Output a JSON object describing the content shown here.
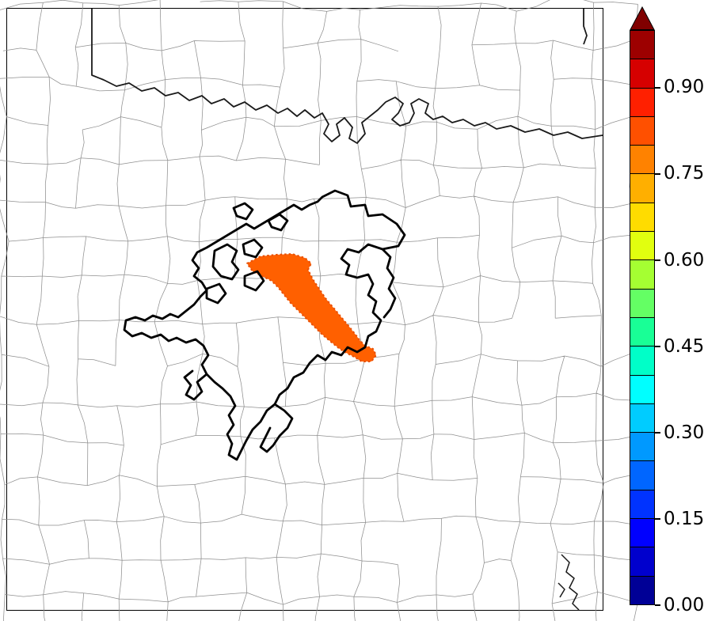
{
  "figure": {
    "description": "County-outline map with a thick black composite contour and an orange filled probability region, with a vertical jet-style colorbar",
    "background_color": "#ffffff"
  },
  "map": {
    "county_line_color": "#8f8f8f",
    "state_border_color": "#1a1a1a",
    "contour_color": "#000000",
    "river_color": "#1a1a1a",
    "probability_region_color": "#ff6000",
    "probability_region_edge_color": "#e84e00"
  },
  "colorbar": {
    "orientation": "vertical",
    "min": 0.0,
    "max": 1.0,
    "interval": 0.05,
    "extend": "max",
    "arrow_color": "#800000",
    "outline_color": "#000000",
    "ticks": [
      "0.00",
      "0.15",
      "0.30",
      "0.45",
      "0.60",
      "0.75",
      "0.90"
    ],
    "tick_values": [
      0.0,
      0.15,
      0.3,
      0.45,
      0.6,
      0.75,
      0.9
    ],
    "segment_colors": [
      "#000096",
      "#0000cd",
      "#0000ff",
      "#0033ff",
      "#0066ff",
      "#0099ff",
      "#00ccff",
      "#00ffff",
      "#00ffc8",
      "#19ff96",
      "#64ff64",
      "#a5ff32",
      "#e1ff0f",
      "#ffdc00",
      "#ffaf00",
      "#ff8200",
      "#ff5000",
      "#ff2000",
      "#d60000",
      "#9d0000"
    ]
  },
  "chart_data": {
    "type": "heatmap",
    "title": "",
    "xlabel": "",
    "ylabel": "",
    "legend_position": "right-colorbar",
    "colormap": "jet-style, discrete 0.05 bins, extended max arrow",
    "colorbar_ticks": [
      0.0,
      0.15,
      0.3,
      0.45,
      0.6,
      0.75,
      0.9
    ],
    "value_range": [
      0.0,
      1.0
    ],
    "filled_region_estimated_value": 0.78,
    "series": [
      {
        "name": "filled probability region",
        "approx_value": 0.78,
        "color": "#ff6000",
        "location": "center of map, elongated NW-SE blob with western arm"
      },
      {
        "name": "thick black outline contour",
        "color": "#000000",
        "location": "center-left cluster of irregular loops and arms"
      }
    ]
  }
}
